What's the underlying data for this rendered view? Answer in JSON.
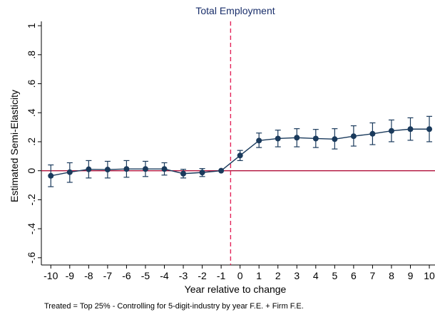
{
  "chart_data": {
    "type": "line",
    "title": "Total Employment",
    "xlabel": "Year relative to change",
    "ylabel": "Estimated Semi-Elasticity",
    "note": "Treated = Top 25% - Controlling for 5-digit-industry by year F.E. + Firm  F.E.",
    "x": [
      -10,
      -9,
      -8,
      -7,
      -6,
      -5,
      -4,
      -3,
      -2,
      -1,
      0,
      1,
      2,
      3,
      4,
      5,
      6,
      7,
      8,
      9,
      10
    ],
    "x_tick_labels": [
      "-10",
      "-9",
      "-8",
      "-7",
      "-6",
      "-5",
      "-4",
      "-3",
      "-2",
      "-1",
      "0",
      "1",
      "2",
      "3",
      "4",
      "5",
      "6",
      "7",
      "8",
      "9",
      "10"
    ],
    "y_ticks": [
      -0.6,
      -0.4,
      -0.2,
      0,
      0.2,
      0.4,
      0.6,
      0.8,
      1
    ],
    "y_tick_labels": [
      "-.6",
      "-.4",
      "-.2",
      "0",
      ".2",
      ".4",
      ".6",
      ".8",
      "1"
    ],
    "ylim": [
      -0.65,
      1.03
    ],
    "xlim": [
      -10.5,
      10.3
    ],
    "grid": false,
    "series": [
      {
        "values": [
          -0.035,
          -0.01,
          0.01,
          0.008,
          0.012,
          0.012,
          0.012,
          -0.02,
          -0.012,
          0.0,
          0.105,
          0.208,
          0.222,
          0.228,
          0.222,
          0.218,
          0.238,
          0.255,
          0.275,
          0.287,
          0.287
        ],
        "ci_low": [
          -0.11,
          -0.08,
          -0.05,
          -0.05,
          -0.045,
          -0.04,
          -0.03,
          -0.05,
          -0.04,
          0.0,
          0.07,
          0.16,
          0.165,
          0.165,
          0.16,
          0.15,
          0.17,
          0.18,
          0.2,
          0.21,
          0.2
        ],
        "ci_high": [
          0.04,
          0.055,
          0.07,
          0.065,
          0.07,
          0.065,
          0.055,
          0.01,
          0.015,
          0.0,
          0.14,
          0.26,
          0.28,
          0.29,
          0.285,
          0.29,
          0.31,
          0.33,
          0.35,
          0.365,
          0.375
        ]
      }
    ],
    "reference_lines": {
      "horizontal_y": 0,
      "vertical_x": -0.5
    },
    "colors": {
      "series": "#1a3a5c",
      "horizontal_ref": "#b0103a",
      "vertical_ref": "#e3245a",
      "title": "#1a2f6b"
    }
  }
}
